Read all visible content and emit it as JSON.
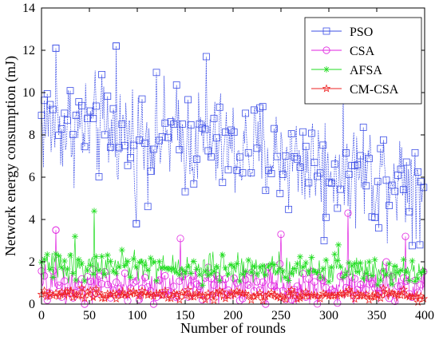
{
  "chart_data": {
    "type": "line",
    "xlabel": "Number of rounds",
    "ylabel": "Network energy consumption (mJ)",
    "xlim": [
      0,
      400
    ],
    "ylim": [
      0,
      14
    ],
    "xticks": [
      0,
      50,
      100,
      150,
      200,
      250,
      300,
      350,
      400
    ],
    "yticks": [
      0,
      2,
      4,
      6,
      8,
      10,
      12,
      14
    ],
    "legend_position": "top-right",
    "grid": false,
    "series": [
      {
        "name": "PSO",
        "color": "#3d4fe6",
        "marker": "square",
        "profile": [
          [
            0,
            8.5
          ],
          [
            50,
            8.3
          ],
          [
            100,
            8.0
          ],
          [
            150,
            7.8
          ],
          [
            200,
            7.3
          ],
          [
            250,
            7.0
          ],
          [
            300,
            6.5
          ],
          [
            350,
            6.2
          ],
          [
            400,
            6.0
          ]
        ],
        "spread": 1.9,
        "extremes": [
          [
            15,
            12.1
          ],
          [
            78,
            12.2
          ],
          [
            172,
            11.7
          ],
          [
            99,
            3.8
          ],
          [
            295,
            3.0
          ],
          [
            395,
            2.8
          ],
          [
            352,
            3.6
          ]
        ]
      },
      {
        "name": "CSA",
        "color": "#e020e0",
        "marker": "circle",
        "profile": [
          [
            0,
            0.9
          ],
          [
            400,
            0.8
          ]
        ],
        "spread": 0.7,
        "extremes": [
          [
            15,
            3.5
          ],
          [
            320,
            4.3
          ],
          [
            145,
            3.1
          ],
          [
            380,
            3.2
          ],
          [
            250,
            3.3
          ]
        ]
      },
      {
        "name": "AFSA",
        "color": "#22dd22",
        "marker": "star",
        "profile": [
          [
            0,
            1.8
          ],
          [
            400,
            1.6
          ]
        ],
        "spread": 0.5,
        "extremes": [
          [
            55,
            4.4
          ],
          [
            35,
            3.2
          ],
          [
            310,
            2.8
          ]
        ]
      },
      {
        "name": "CM-CSA",
        "color": "#ee2222",
        "marker": "pentagram",
        "profile": [
          [
            0,
            0.5
          ],
          [
            400,
            0.4
          ]
        ],
        "spread": 0.2,
        "extremes": []
      }
    ]
  }
}
